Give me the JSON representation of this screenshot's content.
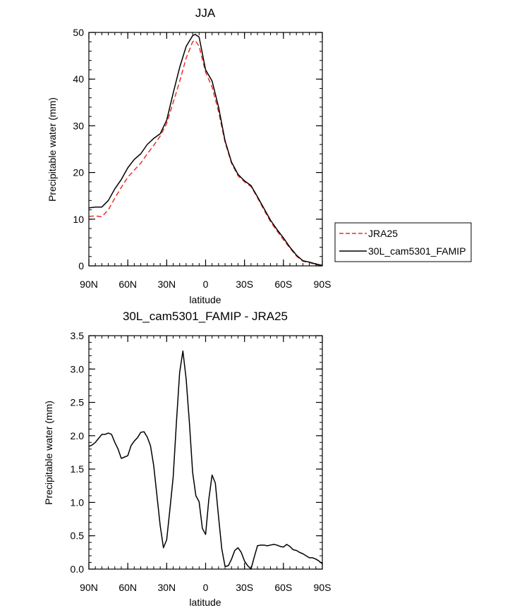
{
  "chart_data": [
    {
      "type": "line",
      "title": "JJA",
      "xlabel": "latitude",
      "ylabel": "Precipitable water (mm)",
      "x_tick_values": [
        90,
        60,
        30,
        0,
        -30,
        -60,
        -90
      ],
      "x_tick_labels": [
        "90N",
        "60N",
        "30N",
        "0",
        "30S",
        "60S",
        "90S"
      ],
      "xlim": [
        90,
        -90
      ],
      "ylim": [
        0,
        50
      ],
      "y_ticks": [
        0,
        10,
        20,
        30,
        40,
        50
      ],
      "y_tick_labels": [
        "0",
        "10",
        "20",
        "30",
        "40",
        "50"
      ],
      "legend": "outside-right",
      "series": [
        {
          "name": "JRA25",
          "color": "#e8302a",
          "dash": "dashed",
          "x": [
            90,
            85,
            80,
            75,
            70,
            65,
            60,
            55,
            50,
            45,
            40,
            35,
            30,
            25,
            20,
            15,
            10,
            8,
            5,
            0,
            -5,
            -10,
            -15,
            -20,
            -25,
            -30,
            -35,
            -40,
            -45,
            -50,
            -55,
            -60,
            -65,
            -70,
            -75,
            -80,
            -85,
            -90
          ],
          "values": [
            10.6,
            10.7,
            10.5,
            12.0,
            14.5,
            16.8,
            19.0,
            20.5,
            22.0,
            24.0,
            25.8,
            27.8,
            30.5,
            35.0,
            39.5,
            44.5,
            48.0,
            48.3,
            47.0,
            41.5,
            38.3,
            33.0,
            26.5,
            22.0,
            19.3,
            18.0,
            17.0,
            14.6,
            12.0,
            9.5,
            7.5,
            5.6,
            3.8,
            2.1,
            1.0,
            0.7,
            0.3,
            0.1
          ]
        },
        {
          "name": "30L_cam5301_FAMIP",
          "color": "#000000",
          "dash": "solid",
          "x": [
            90,
            85,
            80,
            75,
            70,
            65,
            60,
            55,
            50,
            45,
            40,
            35,
            30,
            25,
            20,
            15,
            10,
            8,
            5,
            0,
            -5,
            -10,
            -15,
            -20,
            -25,
            -30,
            -35,
            -40,
            -45,
            -50,
            -55,
            -60,
            -65,
            -70,
            -75,
            -80,
            -85,
            -90
          ],
          "values": [
            12.4,
            12.6,
            12.6,
            14.0,
            16.5,
            18.5,
            21.0,
            22.8,
            24.0,
            26.0,
            27.3,
            28.3,
            31.2,
            37.0,
            42.5,
            47.0,
            49.3,
            49.6,
            49.0,
            42.0,
            39.6,
            34.0,
            26.8,
            22.2,
            19.6,
            18.2,
            17.2,
            14.8,
            12.3,
            9.8,
            7.8,
            6.0,
            4.0,
            2.3,
            1.1,
            0.8,
            0.4,
            0.1
          ]
        }
      ]
    },
    {
      "type": "line",
      "title": "30L_cam5301_FAMIP - JRA25",
      "xlabel": "latitude",
      "ylabel": "Precipitable water (mm)",
      "x_tick_values": [
        90,
        60,
        30,
        0,
        -30,
        -60,
        -90
      ],
      "x_tick_labels": [
        "90N",
        "60N",
        "30N",
        "0",
        "30S",
        "60S",
        "90S"
      ],
      "xlim": [
        90,
        -90
      ],
      "ylim": [
        0,
        3.5
      ],
      "y_ticks": [
        0,
        0.5,
        1,
        1.5,
        2,
        2.5,
        3,
        3.5
      ],
      "y_tick_labels": [
        "0.0",
        "0.5",
        "1.0",
        "1.5",
        "2.0",
        "2.5",
        "3.0",
        "3.5"
      ],
      "series": [
        {
          "name": "",
          "color": "#000000",
          "dash": "solid",
          "x": [
            90,
            87.5,
            85,
            82.5,
            80,
            77.5,
            75,
            72.5,
            70,
            67.5,
            65,
            62.5,
            60,
            57.5,
            55,
            52.5,
            50,
            47.5,
            45,
            42.5,
            40,
            37.5,
            35,
            32.5,
            30,
            27.5,
            25,
            22.5,
            20,
            17.5,
            15,
            12.5,
            10,
            7.5,
            5,
            2.5,
            0,
            -2.5,
            -5,
            -7.5,
            -10,
            -12.5,
            -15,
            -17.5,
            -20,
            -22.5,
            -25,
            -27.5,
            -30,
            -32.5,
            -35,
            -37.5,
            -40,
            -42.5,
            -45,
            -47.5,
            -50,
            -52.5,
            -55,
            -57.5,
            -60,
            -62.5,
            -65,
            -67.5,
            -70,
            -72.5,
            -75,
            -77.5,
            -80,
            -82.5,
            -85,
            -87.5,
            -90
          ],
          "values": [
            1.84,
            1.86,
            1.9,
            1.96,
            2.02,
            2.02,
            2.04,
            2.02,
            1.9,
            1.8,
            1.66,
            1.68,
            1.7,
            1.85,
            1.92,
            1.97,
            2.05,
            2.06,
            1.98,
            1.85,
            1.55,
            1.1,
            0.65,
            0.32,
            0.44,
            0.9,
            1.38,
            2.2,
            2.95,
            3.27,
            2.85,
            2.2,
            1.45,
            1.1,
            1.01,
            0.61,
            0.52,
            1.05,
            1.41,
            1.29,
            0.78,
            0.3,
            0.04,
            0.05,
            0.15,
            0.28,
            0.32,
            0.25,
            0.12,
            0.05,
            0.0,
            0.18,
            0.35,
            0.36,
            0.36,
            0.35,
            0.36,
            0.37,
            0.36,
            0.34,
            0.33,
            0.37,
            0.34,
            0.29,
            0.28,
            0.25,
            0.23,
            0.2,
            0.17,
            0.17,
            0.15,
            0.12,
            0.08
          ]
        }
      ]
    }
  ]
}
